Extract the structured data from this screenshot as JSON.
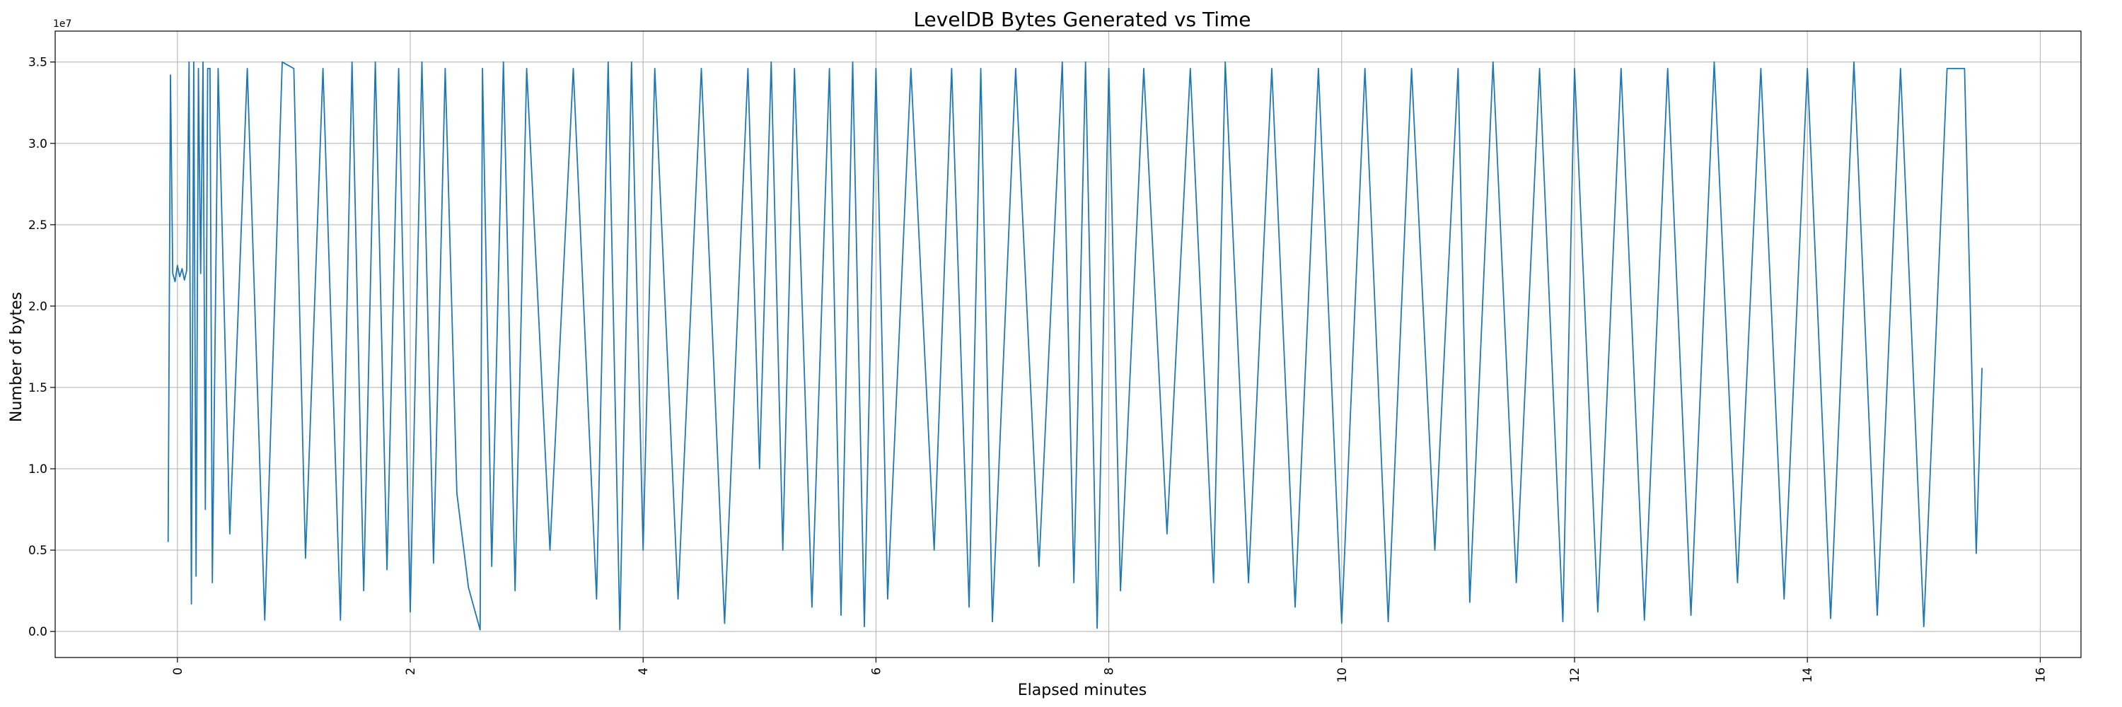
{
  "chart_data": {
    "type": "line",
    "title": "LevelDB Bytes Generated vs Time",
    "xlabel": "Elapsed minutes",
    "ylabel": "Number of bytes",
    "y_offset_label": "1e7",
    "xlim": [
      -1.05,
      16.35
    ],
    "ylim": [
      -1600000,
      36900000
    ],
    "xticks": [
      0,
      2,
      4,
      6,
      8,
      10,
      12,
      14,
      16
    ],
    "xtick_labels": [
      "0",
      "2",
      "4",
      "6",
      "8",
      "10",
      "12",
      "14",
      "16"
    ],
    "yticks": [
      0,
      5000000,
      10000000,
      15000000,
      20000000,
      25000000,
      30000000,
      35000000
    ],
    "ytick_labels": [
      "0.0",
      "0.5",
      "1.0",
      "1.5",
      "2.0",
      "2.5",
      "3.0",
      "3.5"
    ],
    "grid": true,
    "line_color": "#1f77b4",
    "series": [
      {
        "x": [
          -0.08,
          -0.06,
          -0.04,
          -0.02,
          0.0,
          0.02,
          0.04,
          0.06,
          0.08,
          0.1,
          0.12,
          0.14,
          0.16,
          0.18,
          0.2,
          0.22,
          0.24,
          0.26,
          0.28,
          0.3,
          0.35,
          0.45,
          0.6,
          0.75,
          0.9,
          1.0,
          1.1,
          1.25,
          1.4,
          1.5,
          1.6,
          1.7,
          1.8,
          1.9,
          2.0,
          2.1,
          2.2,
          2.3,
          2.4,
          2.5,
          2.6,
          2.62,
          2.7,
          2.8,
          2.9,
          3.0,
          3.2,
          3.4,
          3.6,
          3.7,
          3.8,
          3.9,
          4.0,
          4.1,
          4.3,
          4.5,
          4.7,
          4.9,
          5.0,
          5.1,
          5.2,
          5.3,
          5.45,
          5.6,
          5.7,
          5.8,
          5.9,
          6.0,
          6.1,
          6.3,
          6.5,
          6.65,
          6.8,
          6.9,
          7.0,
          7.2,
          7.4,
          7.6,
          7.7,
          7.8,
          7.9,
          8.0,
          8.1,
          8.3,
          8.5,
          8.7,
          8.9,
          9.0,
          9.2,
          9.4,
          9.6,
          9.8,
          10.0,
          10.2,
          10.4,
          10.6,
          10.8,
          11.0,
          11.1,
          11.3,
          11.5,
          11.7,
          11.9,
          12.0,
          12.2,
          12.4,
          12.6,
          12.8,
          13.0,
          13.2,
          13.4,
          13.6,
          13.8,
          14.0,
          14.2,
          14.4,
          14.6,
          14.8,
          15.0,
          15.2,
          15.35,
          15.45,
          15.5
        ],
        "y": [
          5500000,
          34200000,
          22000000,
          21500000,
          22500000,
          21800000,
          22300000,
          21600000,
          22200000,
          35000000,
          1700000,
          35000000,
          3400000,
          34600000,
          22000000,
          35000000,
          7500000,
          34600000,
          34600000,
          3000000,
          34600000,
          6000000,
          34600000,
          700000,
          35000000,
          34600000,
          4500000,
          34600000,
          700000,
          35000000,
          2500000,
          35000000,
          3800000,
          34600000,
          1200000,
          35000000,
          4200000,
          34600000,
          8500000,
          2700000,
          100000,
          34600000,
          4000000,
          35000000,
          2500000,
          34600000,
          5000000,
          34600000,
          2000000,
          35000000,
          100000,
          35000000,
          5000000,
          34600000,
          2000000,
          34600000,
          500000,
          34600000,
          10000000,
          35000000,
          5000000,
          34600000,
          1500000,
          34600000,
          1000000,
          35000000,
          300000,
          34600000,
          2000000,
          34600000,
          5000000,
          34600000,
          1500000,
          34600000,
          600000,
          34600000,
          4000000,
          35000000,
          3000000,
          35000000,
          200000,
          34600000,
          2500000,
          34600000,
          6000000,
          34600000,
          3000000,
          35000000,
          3000000,
          34600000,
          1500000,
          34600000,
          500000,
          34600000,
          600000,
          34600000,
          5000000,
          34600000,
          1800000,
          35000000,
          3000000,
          34600000,
          600000,
          34600000,
          1200000,
          34600000,
          700000,
          34600000,
          1000000,
          35000000,
          3000000,
          34600000,
          2000000,
          34600000,
          800000,
          35000000,
          1000000,
          34600000,
          300000,
          34600000,
          34600000,
          4800000,
          16200000
        ]
      }
    ]
  }
}
